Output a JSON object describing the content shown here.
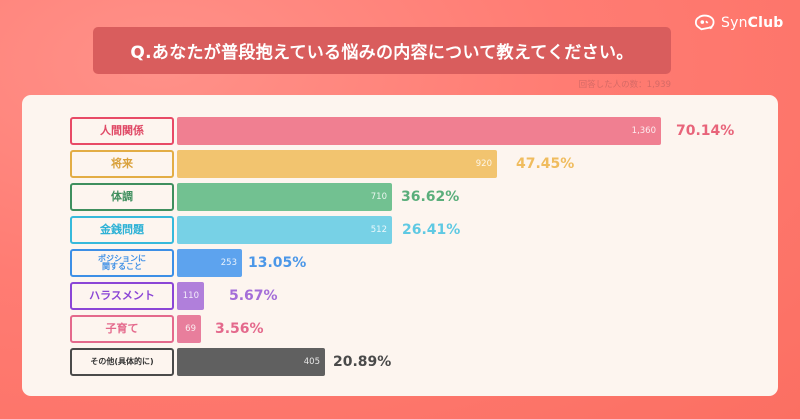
{
  "brand": {
    "logo_prefix": "Syn",
    "logo_suffix": "Club"
  },
  "header": {
    "title": "Q.あなたが普段抱えている悩みの内容について教えてください。",
    "respondents": "回答した人の数：1,939"
  },
  "chart_data": {
    "type": "bar",
    "orientation": "horizontal",
    "title": "Q.あなたが普段抱えている悩みの内容について教えてください。",
    "subtitle": "回答した人の数：1,939",
    "total_respondents": 1939,
    "categories": [
      "人間関係",
      "将来",
      "体調",
      "金銭問題",
      "ポジションに関すること",
      "ハラスメント",
      "子育て",
      "その他(具体的に)"
    ],
    "values": [
      1360,
      920,
      710,
      512,
      253,
      110,
      69,
      405
    ],
    "percentages": [
      "70.14%",
      "47.45%",
      "36.62%",
      "26.41%",
      "13.05%",
      "5.67%",
      "3.56%",
      "20.89%"
    ],
    "colors": [
      "#f07f91",
      "#f2c46f",
      "#72c191",
      "#77d1e6",
      "#5da3ee",
      "#b07fdb",
      "#e87e9c",
      "#606060"
    ],
    "grid": false,
    "legend": "none"
  },
  "rows": [
    {
      "label": "人間関係",
      "value": "1,360",
      "pct": "70.14%",
      "color": "#f07f91",
      "border": "#e84a66",
      "text": "#e04a66",
      "pctColor": "#e8647a",
      "barEnd": 661,
      "pctX": 676
    },
    {
      "label": "将来",
      "value": "920",
      "pct": "47.45%",
      "color": "#f2c46f",
      "border": "#e3ad45",
      "text": "#d9a13c",
      "pctColor": "#f0bc5e",
      "barEnd": 497,
      "pctX": 516
    },
    {
      "label": "体調",
      "value": "710",
      "pct": "36.62%",
      "color": "#72c191",
      "border": "#3f8f5e",
      "text": "#3f8f5e",
      "pctColor": "#5aae7b",
      "barEnd": 392,
      "pctX": 401
    },
    {
      "label": "金銭問題",
      "value": "512",
      "pct": "26.41%",
      "color": "#77d1e6",
      "border": "#37b9db",
      "text": "#2fb2d6",
      "pctColor": "#5fc9e3",
      "barEnd": 392,
      "pctX": 402
    },
    {
      "label": "ポジションに\n関すること",
      "value": "253",
      "pct": "13.05%",
      "color": "#5da3ee",
      "border": "#3d8fe6",
      "text": "#3d8fe6",
      "pctColor": "#4b97e8",
      "barEnd": 242,
      "pctX": 248
    },
    {
      "label": "ハラスメント",
      "value": "110",
      "pct": "5.67%",
      "color": "#b07fdb",
      "border": "#8b46d6",
      "text": "#8b46d6",
      "pctColor": "#a46ed8",
      "barEnd": 204,
      "pctX": 229
    },
    {
      "label": "子育て",
      "value": "69",
      "pct": "3.56%",
      "color": "#e87e9c",
      "border": "#e4698c",
      "text": "#e4698c",
      "pctColor": "#e4698c",
      "barEnd": 201,
      "pctX": 215
    },
    {
      "label": "その他(具体的に)",
      "value": "405",
      "pct": "20.89%",
      "color": "#606060",
      "border": "#4a4a4a",
      "text": "#333333",
      "pctColor": "#4a4a4a",
      "barEnd": 325,
      "pctX": 333
    }
  ]
}
